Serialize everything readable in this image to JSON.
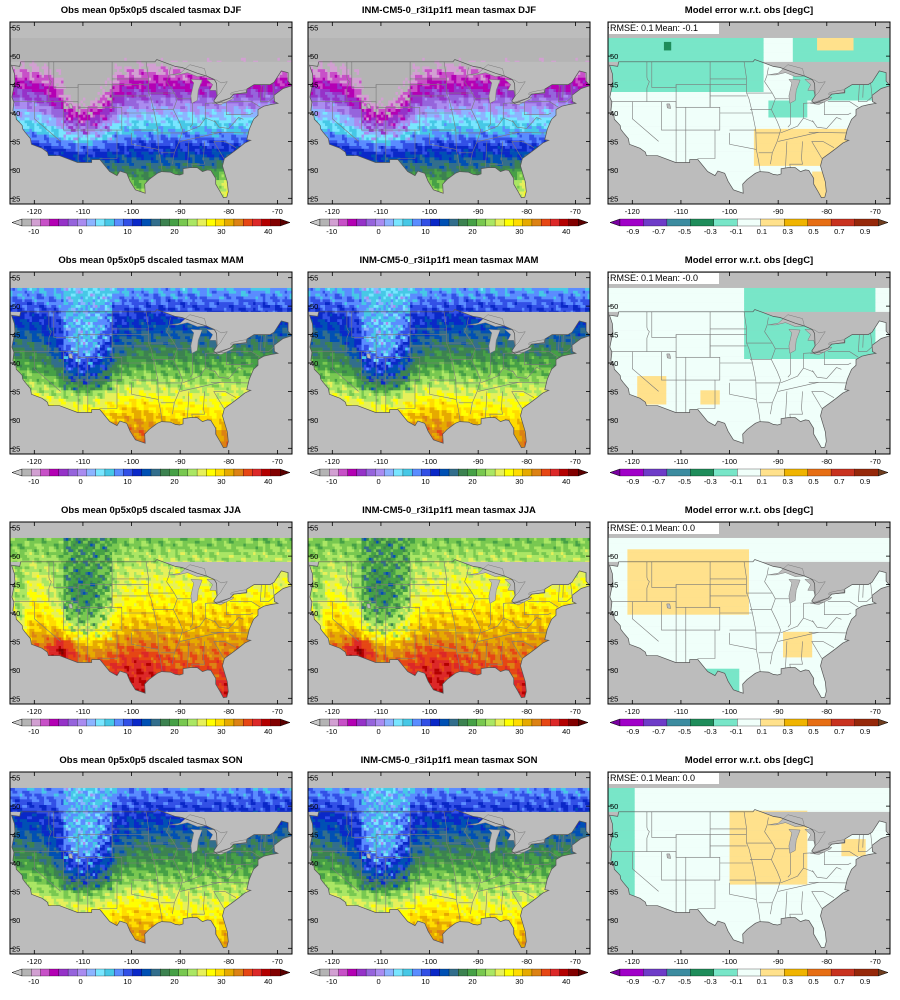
{
  "figure": {
    "rows": [
      {
        "season": "DJF",
        "obs_title": "Obs mean 0p5x0p5 dscaled tasmax DJF",
        "model_title": "INM-CM5-0_r3i1p1f1 mean tasmax DJF",
        "diff_title": "Model error w.r.t. obs [degC]",
        "rmse_label": "RMSE: 0.1",
        "mean_label": "Mean: -0.1",
        "obs_pattern": "winter",
        "model_pattern": "winter",
        "diff_pattern": "djf"
      },
      {
        "season": "MAM",
        "obs_title": "Obs mean 0p5x0p5 dscaled tasmax MAM",
        "model_title": "INM-CM5-0_r3i1p1f1 mean tasmax MAM",
        "diff_title": "Model error w.r.t. obs [degC]",
        "rmse_label": "RMSE: 0.1",
        "mean_label": "Mean: -0.0",
        "obs_pattern": "spring",
        "model_pattern": "spring",
        "diff_pattern": "mam"
      },
      {
        "season": "JJA",
        "obs_title": "Obs mean 0p5x0p5 dscaled tasmax JJA",
        "model_title": "INM-CM5-0_r3i1p1f1 mean tasmax JJA",
        "diff_title": "Model error w.r.t. obs [degC]",
        "rmse_label": "RMSE: 0.1",
        "mean_label": "Mean: 0.0",
        "obs_pattern": "summer",
        "model_pattern": "summer",
        "diff_pattern": "jja"
      },
      {
        "season": "SON",
        "obs_title": "Obs mean 0p5x0p5 dscaled tasmax SON",
        "model_title": "INM-CM5-0_r3i1p1f1 mean tasmax SON",
        "diff_title": "Model error w.r.t. obs [degC]",
        "rmse_label": "RMSE: 0.1",
        "mean_label": "Mean: 0.0",
        "obs_pattern": "autumn",
        "model_pattern": "autumn",
        "diff_pattern": "son"
      }
    ],
    "lon_ticks": [
      "-120",
      "-110",
      "-100",
      "-90",
      "-80",
      "-70"
    ],
    "lat_ticks": [
      "55",
      "50",
      "45",
      "40",
      "35",
      "30",
      "25"
    ],
    "temp_colorbar": {
      "labels": [
        "-10",
        "0",
        "10",
        "20",
        "30",
        "40"
      ],
      "colors": [
        "#b4b4b4",
        "#d2a0d2",
        "#c850c8",
        "#b400b4",
        "#9632c8",
        "#9664dc",
        "#aa8cf0",
        "#8cb4ff",
        "#78e6ff",
        "#46c8e6",
        "#5a8cff",
        "#3250e6",
        "#0a28c8",
        "#0050b4",
        "#326e8c",
        "#3c8250",
        "#46a046",
        "#78c850",
        "#aae664",
        "#e6f05a",
        "#ffff00",
        "#ffdc00",
        "#e6aa00",
        "#dc8214",
        "#e64614",
        "#dc2828",
        "#b40000",
        "#820000"
      ],
      "under_color": "#c8c8c8",
      "over_color": "#5a0000"
    },
    "diff_colorbar": {
      "labels": [
        "-0.9",
        "-0.7",
        "-0.5",
        "-0.3",
        "-0.1",
        "0.1",
        "0.3",
        "0.5",
        "0.7",
        "0.9"
      ],
      "colors": [
        "#a000c8",
        "#6e3cc8",
        "#3c8ca0",
        "#1e8c5a",
        "#78e6c8",
        "#f0fffa",
        "#ffe18c",
        "#f0b400",
        "#e66e14",
        "#c8321e",
        "#96280a"
      ],
      "under_color": "#7800a0",
      "over_color": "#6e3c1e"
    },
    "map_colors": {
      "ocean": "#bcbcbc",
      "lakes": "#bcbcbc",
      "borders": "#7a7a7a"
    }
  },
  "chart_data": [
    {
      "type": "heatmap",
      "title": "Obs mean 0p5x0p5 dscaled tasmax DJF",
      "x_ticks": [
        -120,
        -110,
        -100,
        -90,
        -80,
        -70
      ],
      "y_ticks": [
        25,
        30,
        35,
        40,
        45,
        50,
        55
      ],
      "colorbar_range": [
        -10,
        40
      ],
      "colorbar_ticks": [
        -10,
        0,
        10,
        20,
        30,
        40
      ]
    },
    {
      "type": "heatmap",
      "title": "INM-CM5-0_r3i1p1f1 mean tasmax DJF",
      "x_ticks": [
        -120,
        -110,
        -100,
        -90,
        -80,
        -70
      ],
      "y_ticks": [
        25,
        30,
        35,
        40,
        45,
        50,
        55
      ],
      "colorbar_range": [
        -10,
        40
      ],
      "colorbar_ticks": [
        -10,
        0,
        10,
        20,
        30,
        40
      ]
    },
    {
      "type": "heatmap",
      "title": "Model error w.r.t. obs [degC]",
      "annotations": [
        "RMSE: 0.1",
        "Mean: -0.1"
      ],
      "x_ticks": [
        -120,
        -110,
        -100,
        -90,
        -80,
        -70
      ],
      "y_ticks": [
        25,
        30,
        35,
        40,
        45,
        50,
        55
      ],
      "colorbar_range": [
        -0.9,
        0.9
      ],
      "colorbar_ticks": [
        -0.9,
        -0.7,
        -0.5,
        -0.3,
        -0.1,
        0.1,
        0.3,
        0.5,
        0.7,
        0.9
      ]
    },
    {
      "type": "heatmap",
      "title": "Obs mean 0p5x0p5 dscaled tasmax MAM",
      "x_ticks": [
        -120,
        -110,
        -100,
        -90,
        -80,
        -70
      ],
      "y_ticks": [
        25,
        30,
        35,
        40,
        45,
        50,
        55
      ],
      "colorbar_range": [
        -10,
        40
      ],
      "colorbar_ticks": [
        -10,
        0,
        10,
        20,
        30,
        40
      ]
    },
    {
      "type": "heatmap",
      "title": "INM-CM5-0_r3i1p1f1 mean tasmax MAM",
      "x_ticks": [
        -120,
        -110,
        -100,
        -90,
        -80,
        -70
      ],
      "y_ticks": [
        25,
        30,
        35,
        40,
        45,
        50,
        55
      ],
      "colorbar_range": [
        -10,
        40
      ],
      "colorbar_ticks": [
        -10,
        0,
        10,
        20,
        30,
        40
      ]
    },
    {
      "type": "heatmap",
      "title": "Model error w.r.t. obs [degC]",
      "annotations": [
        "RMSE: 0.1",
        "Mean: -0.0"
      ],
      "x_ticks": [
        -120,
        -110,
        -100,
        -90,
        -80,
        -70
      ],
      "y_ticks": [
        25,
        30,
        35,
        40,
        45,
        50,
        55
      ],
      "colorbar_range": [
        -0.9,
        0.9
      ],
      "colorbar_ticks": [
        -0.9,
        -0.7,
        -0.5,
        -0.3,
        -0.1,
        0.1,
        0.3,
        0.5,
        0.7,
        0.9
      ]
    },
    {
      "type": "heatmap",
      "title": "Obs mean 0p5x0p5 dscaled tasmax JJA",
      "x_ticks": [
        -120,
        -110,
        -100,
        -90,
        -80,
        -70
      ],
      "y_ticks": [
        25,
        30,
        35,
        40,
        45,
        50,
        55
      ],
      "colorbar_range": [
        -10,
        40
      ],
      "colorbar_ticks": [
        -10,
        0,
        10,
        20,
        30,
        40
      ]
    },
    {
      "type": "heatmap",
      "title": "INM-CM5-0_r3i1p1f1 mean tasmax JJA",
      "x_ticks": [
        -120,
        -110,
        -100,
        -90,
        -80,
        -70
      ],
      "y_ticks": [
        25,
        30,
        35,
        40,
        45,
        50,
        55
      ],
      "colorbar_range": [
        -10,
        40
      ],
      "colorbar_ticks": [
        -10,
        0,
        10,
        20,
        30,
        40
      ]
    },
    {
      "type": "heatmap",
      "title": "Model error w.r.t. obs [degC]",
      "annotations": [
        "RMSE: 0.1",
        "Mean: 0.0"
      ],
      "x_ticks": [
        -120,
        -110,
        -100,
        -90,
        -80,
        -70
      ],
      "y_ticks": [
        25,
        30,
        35,
        40,
        45,
        50,
        55
      ],
      "colorbar_range": [
        -0.9,
        0.9
      ],
      "colorbar_ticks": [
        -0.9,
        -0.7,
        -0.5,
        -0.3,
        -0.1,
        0.1,
        0.3,
        0.5,
        0.7,
        0.9
      ]
    },
    {
      "type": "heatmap",
      "title": "Obs mean 0p5x0p5 dscaled tasmax SON",
      "x_ticks": [
        -120,
        -110,
        -100,
        -90,
        -80,
        -70
      ],
      "y_ticks": [
        25,
        30,
        35,
        40,
        45,
        50,
        55
      ],
      "colorbar_range": [
        -10,
        40
      ],
      "colorbar_ticks": [
        -10,
        0,
        10,
        20,
        30,
        40
      ]
    },
    {
      "type": "heatmap",
      "title": "INM-CM5-0_r3i1p1f1 mean tasmax SON",
      "x_ticks": [
        -120,
        -110,
        -100,
        -90,
        -80,
        -70
      ],
      "y_ticks": [
        25,
        30,
        35,
        40,
        45,
        50,
        55
      ],
      "colorbar_range": [
        -10,
        40
      ],
      "colorbar_ticks": [
        -10,
        0,
        10,
        20,
        30,
        40
      ]
    },
    {
      "type": "heatmap",
      "title": "Model error w.r.t. obs [degC]",
      "annotations": [
        "RMSE: 0.1",
        "Mean: 0.0"
      ],
      "x_ticks": [
        -120,
        -110,
        -100,
        -90,
        -80,
        -70
      ],
      "y_ticks": [
        25,
        30,
        35,
        40,
        45,
        50,
        55
      ],
      "colorbar_range": [
        -0.9,
        0.9
      ],
      "colorbar_ticks": [
        -0.9,
        -0.7,
        -0.5,
        -0.3,
        -0.1,
        0.1,
        0.3,
        0.5,
        0.7,
        0.9
      ]
    }
  ]
}
